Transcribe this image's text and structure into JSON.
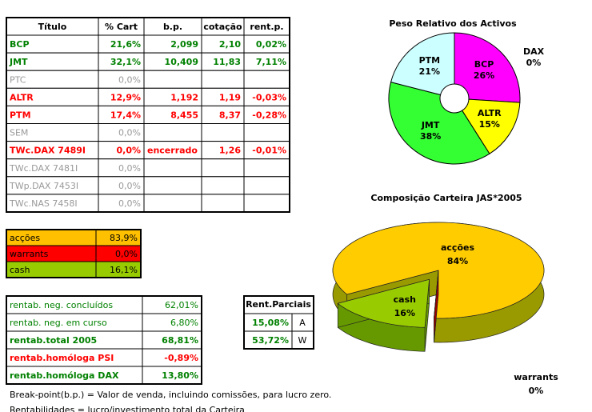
{
  "table": {
    "header": [
      "Título",
      "% Cart",
      "b.p.",
      "cotação",
      "rent.p."
    ],
    "rows": [
      {
        "cells": [
          "BCP",
          "21,6%",
          "2,099",
          "2,10",
          "0,02%"
        ],
        "color": "#008000",
        "bold": true
      },
      {
        "cells": [
          "JMT",
          "32,1%",
          "10,409",
          "11,83",
          "7,11%"
        ],
        "color": "#008000",
        "bold": true
      },
      {
        "cells": [
          "PTC",
          "0,0%",
          null,
          null,
          null
        ],
        "color": "#999999",
        "bold": false
      },
      {
        "cells": [
          "ALTR",
          "12,9%",
          "1,192",
          "1,19",
          "-0,03%"
        ],
        "color": "#ff0000",
        "bold": true
      },
      {
        "cells": [
          "PTM",
          "17,4%",
          "8,455",
          "8,37",
          "-0,28%"
        ],
        "color": "#ff0000",
        "bold": true
      },
      {
        "cells": [
          "SEM",
          "0,0%",
          null,
          null,
          null
        ],
        "color": "#999999",
        "bold": false
      },
      {
        "cells": [
          "TWc.DAX 7489I",
          "0,0%",
          "encerrado",
          "1,26",
          "-0,01%"
        ],
        "color": "#ff0000",
        "bold": true
      },
      {
        "cells": [
          "TWc.DAX 7481I",
          "0,0%",
          null,
          null,
          null
        ],
        "color": "#999999",
        "bold": false
      },
      {
        "cells": [
          "TWp.DAX 7453I",
          "0,0%",
          null,
          null,
          null
        ],
        "color": "#999999",
        "bold": false
      },
      {
        "cells": [
          "TWc.NAS 7458I",
          "0,0%",
          null,
          null,
          null
        ],
        "color": "#999999",
        "bold": false
      }
    ]
  },
  "allocation": {
    "rows": [
      {
        "cells": [
          "acções",
          "83,9%"
        ],
        "fill": "#ffc000"
      },
      {
        "cells": [
          "warrants",
          "0,0%"
        ],
        "fill": "#ff0000"
      },
      {
        "cells": [
          "cash",
          "16,1%"
        ],
        "fill": "#99cc00"
      }
    ]
  },
  "rentab": {
    "rows": [
      {
        "cells": [
          "rentab. neg. concluídos",
          "62,01%"
        ],
        "color": "#008000",
        "bold": false
      },
      {
        "cells": [
          "rentab. neg. em curso",
          "6,80%"
        ],
        "color": "#008000",
        "bold": false
      },
      {
        "cells": [
          "rentab.total 2005",
          "68,81%"
        ],
        "color": "#008000",
        "bold": true
      },
      {
        "cells": [
          "rentab.homóloga PSI",
          "-0,89%"
        ],
        "color": "#ff0000",
        "bold": true
      },
      {
        "cells": [
          "rentab.homóloga DAX",
          "13,80%"
        ],
        "color": "#008000",
        "bold": true
      }
    ]
  },
  "partial": {
    "title": "Rent.Parciais",
    "color": "#008000",
    "rows": [
      [
        "15,08%",
        "A"
      ],
      [
        "53,72%",
        "W"
      ]
    ]
  },
  "notes": [
    "Break-point(b.p.) = Valor de venda, incluindo comissões, para lucro zero.",
    "Rentabilidades = lucro/investimento total da Carteira"
  ],
  "chart_data": [
    {
      "type": "donut",
      "title": "Peso Relativo dos Activos",
      "categories": [
        "BCP",
        "ALTR",
        "JMT",
        "PTM",
        "DAX"
      ],
      "values": [
        26,
        15,
        38,
        21,
        0
      ],
      "value_labels": [
        "26%",
        "15%",
        "38%",
        "21%",
        "0%"
      ],
      "colors": [
        "#ff00ff",
        "#ffff00",
        "#33ff33",
        "#ccffff",
        "#9999ff"
      ]
    },
    {
      "type": "pie3d",
      "title": "Composição Carteira JAS*2005",
      "categories": [
        "acções",
        "warrants",
        "cash"
      ],
      "values": [
        84,
        0,
        16
      ],
      "value_labels": [
        "84%",
        "0%",
        "16%"
      ],
      "colors": [
        "#ffcc00",
        "#ff0000",
        "#99cc00"
      ],
      "side_colors": [
        "#999900",
        "#990000",
        "#669900"
      ]
    }
  ]
}
